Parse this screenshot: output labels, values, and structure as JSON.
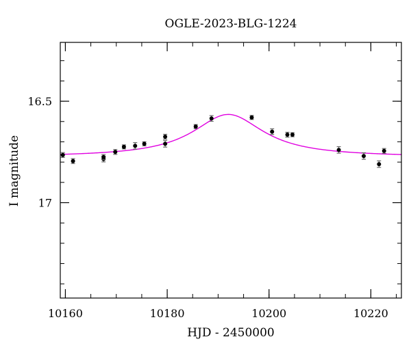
{
  "chart_data": {
    "type": "scatter",
    "title": "OGLE-2023-BLG-1224",
    "xlabel": "HJD - 2450000",
    "ylabel": "I magnitude",
    "xlim": [
      10159,
      10226
    ],
    "ylim": [
      17.47,
      16.21
    ],
    "y_inverted": true,
    "grid": false,
    "x_ticks": [
      10160,
      10180,
      10200,
      10220
    ],
    "x_tick_labels": [
      "10160",
      "10180",
      "10200",
      "10220"
    ],
    "y_ticks": [
      16.5,
      17
    ],
    "y_tick_labels": [
      "16.5",
      "17"
    ],
    "x_minor_step": 5,
    "y_minor_step": 0.1,
    "colors": {
      "model": "#e000e0",
      "points": "#000000",
      "error_bars": "#666666"
    },
    "model_curve": {
      "baseline": 16.775,
      "peak_mag": 16.565,
      "t0": 10192,
      "width": 8.5
    },
    "points": [
      {
        "x": 10159.5,
        "y": 16.765,
        "err": 0.012
      },
      {
        "x": 10161.5,
        "y": 16.795,
        "err": 0.012
      },
      {
        "x": 10167.5,
        "y": 16.785,
        "err": 0.014
      },
      {
        "x": 10167.5,
        "y": 16.775,
        "err": 0.012
      },
      {
        "x": 10169.8,
        "y": 16.75,
        "err": 0.012
      },
      {
        "x": 10171.5,
        "y": 16.725,
        "err": 0.01
      },
      {
        "x": 10173.7,
        "y": 16.72,
        "err": 0.016
      },
      {
        "x": 10175.5,
        "y": 16.71,
        "err": 0.01
      },
      {
        "x": 10179.6,
        "y": 16.675,
        "err": 0.012
      },
      {
        "x": 10179.6,
        "y": 16.71,
        "err": 0.016
      },
      {
        "x": 10185.6,
        "y": 16.625,
        "err": 0.01
      },
      {
        "x": 10188.7,
        "y": 16.585,
        "err": 0.014
      },
      {
        "x": 10196.6,
        "y": 16.58,
        "err": 0.01
      },
      {
        "x": 10200.6,
        "y": 16.65,
        "err": 0.014
      },
      {
        "x": 10203.6,
        "y": 16.665,
        "err": 0.012
      },
      {
        "x": 10204.6,
        "y": 16.665,
        "err": 0.01
      },
      {
        "x": 10213.7,
        "y": 16.74,
        "err": 0.016
      },
      {
        "x": 10218.6,
        "y": 16.77,
        "err": 0.016
      },
      {
        "x": 10221.6,
        "y": 16.81,
        "err": 0.016
      },
      {
        "x": 10222.6,
        "y": 16.745,
        "err": 0.012
      }
    ]
  }
}
